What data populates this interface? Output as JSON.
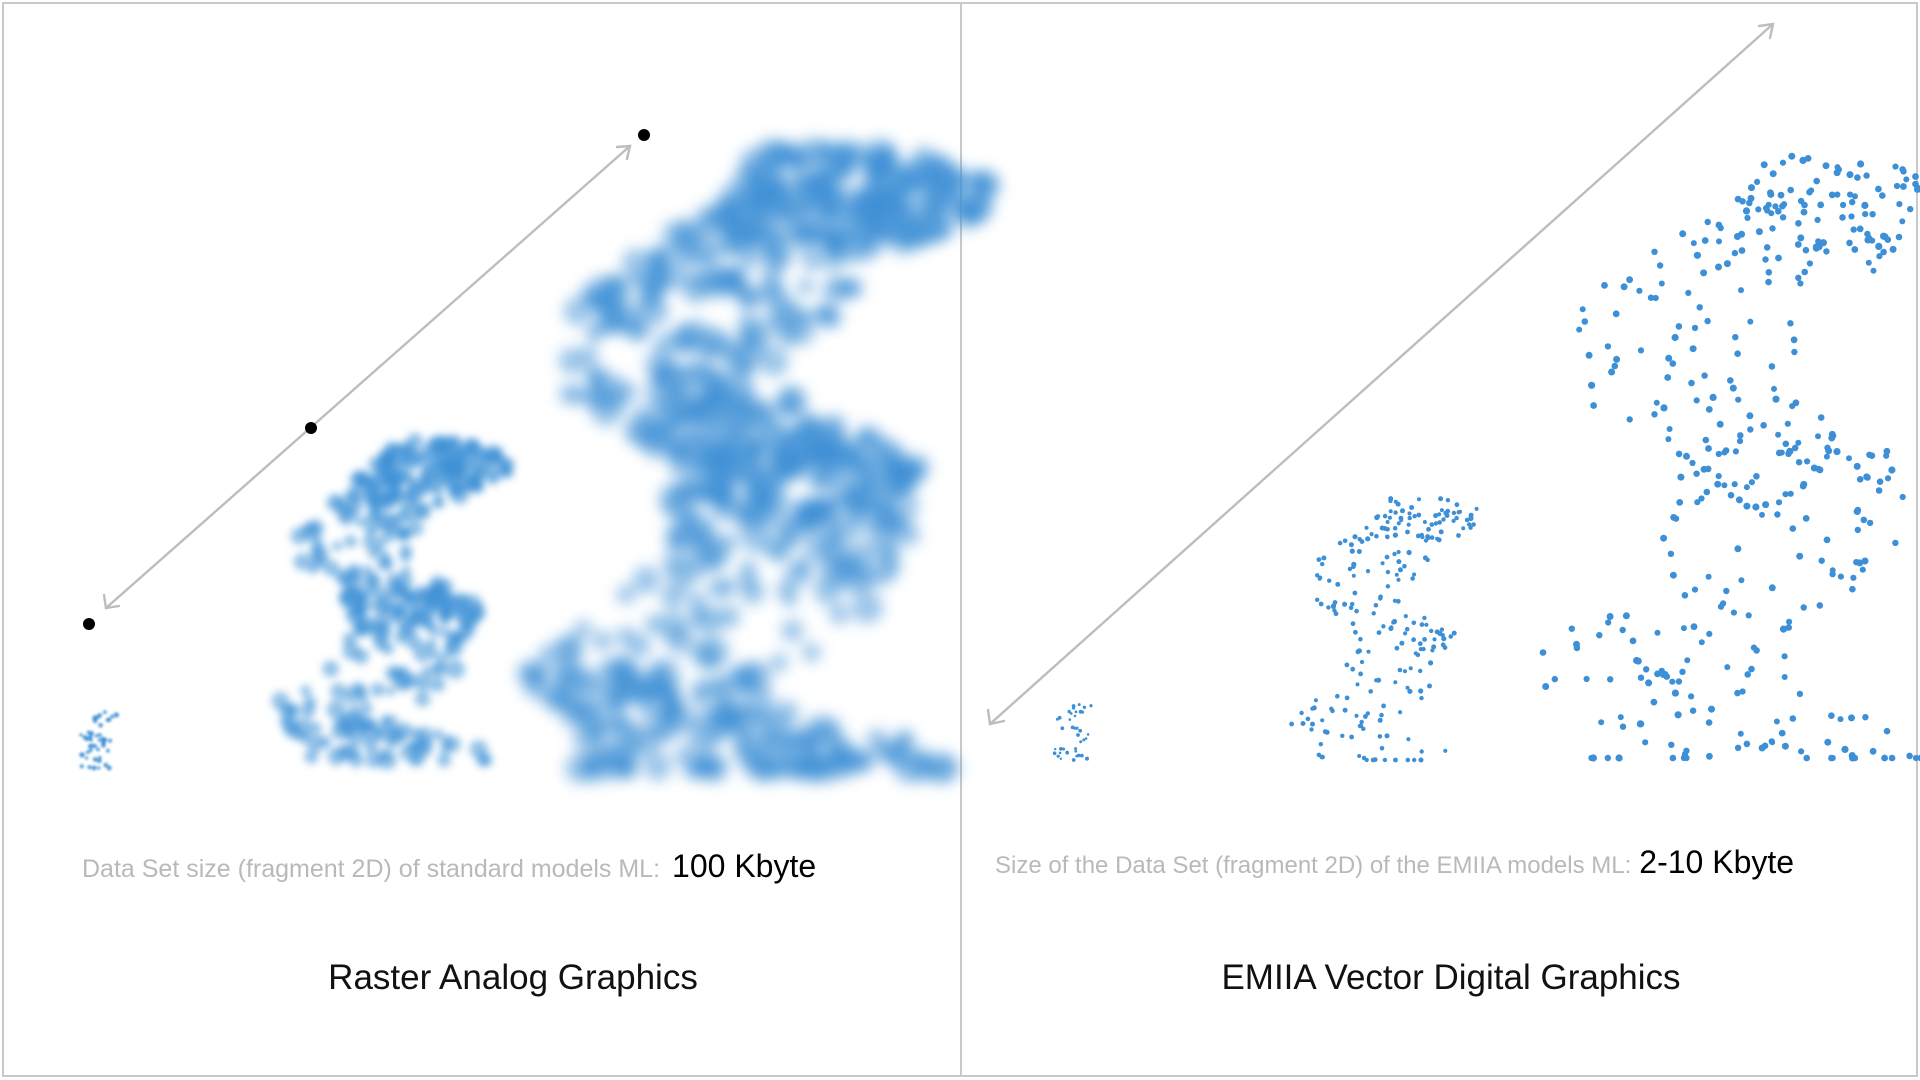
{
  "left_panel": {
    "caption_label": "Data Set size (fragment 2D) of standard models ML:",
    "caption_value": "100 Kbyte",
    "title": "Raster Analog Graphics"
  },
  "right_panel": {
    "caption_label": "Size of the Data Set (fragment 2D) of the EMIIA models ML:",
    "caption_value": "2-10 Kbyte",
    "title": "EMIIA Vector Digital Graphics"
  },
  "colors": {
    "figure_blue": "#3d8fd6",
    "arrow_gray": "#bdbdbd",
    "caption_gray": "#b9b9b9",
    "border_gray": "#c9c9c9"
  }
}
